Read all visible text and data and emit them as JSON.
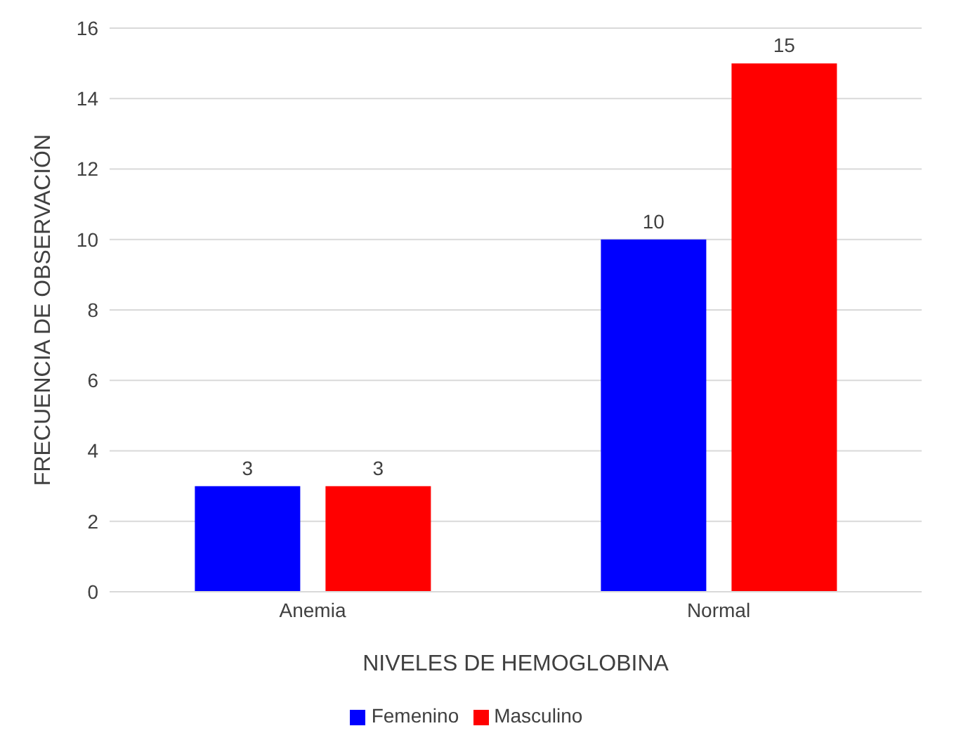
{
  "chart_data": {
    "type": "bar",
    "xlabel": "NIVELES DE HEMOGLOBINA",
    "ylabel": "FRECUENCIA DE OBSERVACIÓN",
    "categories": [
      "Anemia",
      "Normal"
    ],
    "series": [
      {
        "name": "Femenino",
        "color": "#0000ff",
        "values": [
          3,
          10
        ]
      },
      {
        "name": "Masculino",
        "color": "#ff0000",
        "values": [
          3,
          15
        ]
      }
    ],
    "ylim": [
      0,
      16
    ],
    "yticks": [
      0,
      2,
      4,
      6,
      8,
      10,
      12,
      14,
      16
    ],
    "grid": "y",
    "legend": "bottom",
    "data_labels": true
  }
}
